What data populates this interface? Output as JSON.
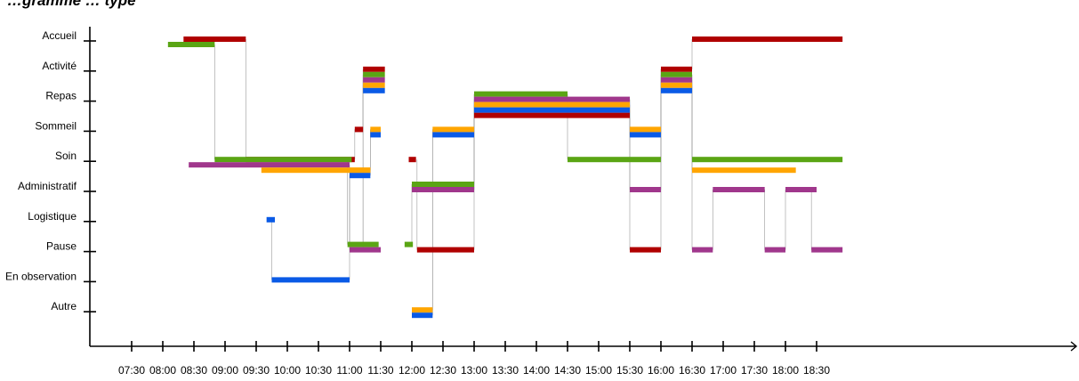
{
  "chart_data": {
    "type": "timeline",
    "title": "…gramme … type",
    "x_ticks": [
      "07:30",
      "08:00",
      "08:30",
      "09:00",
      "09:30",
      "10:00",
      "10:30",
      "11:00",
      "11:30",
      "12:00",
      "12:30",
      "13:00",
      "13:30",
      "14:00",
      "14:30",
      "15:00",
      "15:30",
      "16:00",
      "16:30",
      "17:00",
      "17:30",
      "18:00",
      "18:30"
    ],
    "x_range": [
      "07:10",
      "18:55"
    ],
    "categories": [
      "Accueil",
      "Activité",
      "Repas",
      "Sommeil",
      "Soin",
      "Administratif",
      "Logistique",
      "Pause",
      "En observation",
      "Autre"
    ],
    "grid": false,
    "series": [
      {
        "color": "#b00000",
        "segments": [
          {
            "start": "08:20",
            "end": "09:20",
            "category": "Accueil",
            "offset": 0
          },
          {
            "start": "09:20",
            "end": "11:05",
            "category": "Soin",
            "offset": 0
          },
          {
            "start": "11:05",
            "end": "11:13",
            "category": "Sommeil",
            "offset": 0
          },
          {
            "start": "11:13",
            "end": "11:34",
            "category": "Activité",
            "offset": 0
          },
          {
            "start": "11:57",
            "end": "12:04",
            "category": "Soin",
            "offset": 0
          },
          {
            "start": "12:05",
            "end": "13:00",
            "category": "Pause",
            "offset": 0
          },
          {
            "start": "13:00",
            "end": "15:30",
            "category": "Repas",
            "offset": 3
          },
          {
            "start": "15:30",
            "end": "16:00",
            "category": "Pause",
            "offset": 0
          },
          {
            "start": "16:00",
            "end": "16:30",
            "category": "Activité",
            "offset": 0
          },
          {
            "start": "16:30",
            "end": "18:55",
            "category": "Accueil",
            "offset": 0
          }
        ]
      },
      {
        "color": "#5aa514",
        "segments": [
          {
            "start": "08:05",
            "end": "08:50",
            "category": "Accueil",
            "offset": 1
          },
          {
            "start": "08:50",
            "end": "11:02",
            "category": "Soin",
            "offset": 0
          },
          {
            "start": "10:58",
            "end": "11:28",
            "category": "Pause",
            "offset": -1
          },
          {
            "start": "11:13",
            "end": "11:34",
            "category": "Activité",
            "offset": 1
          },
          {
            "start": "11:53",
            "end": "12:01",
            "category": "Pause",
            "offset": -1
          },
          {
            "start": "12:00",
            "end": "13:00",
            "category": "Administratif",
            "offset": -1
          },
          {
            "start": "13:00",
            "end": "14:30",
            "category": "Repas",
            "offset": -1
          },
          {
            "start": "14:30",
            "end": "16:00",
            "category": "Soin",
            "offset": 0
          },
          {
            "start": "16:00",
            "end": "16:30",
            "category": "Activité",
            "offset": 1
          },
          {
            "start": "16:30",
            "end": "18:55",
            "category": "Soin",
            "offset": 0
          }
        ]
      },
      {
        "color": "#a0378c",
        "segments": [
          {
            "start": "08:25",
            "end": "11:00",
            "category": "Soin",
            "offset": 1
          },
          {
            "start": "11:00",
            "end": "11:30",
            "category": "Pause",
            "offset": 0
          },
          {
            "start": "11:13",
            "end": "11:34",
            "category": "Activité",
            "offset": 2
          },
          {
            "start": "12:00",
            "end": "13:00",
            "category": "Administratif",
            "offset": 0
          },
          {
            "start": "13:00",
            "end": "15:30",
            "category": "Repas",
            "offset": 0
          },
          {
            "start": "15:30",
            "end": "16:00",
            "category": "Administratif",
            "offset": 0
          },
          {
            "start": "16:00",
            "end": "16:30",
            "category": "Activité",
            "offset": 2
          },
          {
            "start": "16:30",
            "end": "16:50",
            "category": "Pause",
            "offset": 0
          },
          {
            "start": "16:50",
            "end": "17:40",
            "category": "Administratif",
            "offset": 0
          },
          {
            "start": "17:40",
            "end": "18:00",
            "category": "Pause",
            "offset": 0
          },
          {
            "start": "18:00",
            "end": "18:30",
            "category": "Administratif",
            "offset": 0
          },
          {
            "start": "18:25",
            "end": "18:55",
            "category": "Pause",
            "offset": 0
          }
        ]
      },
      {
        "color": "#ffa500",
        "segments": [
          {
            "start": "09:35",
            "end": "11:20",
            "category": "Soin",
            "offset": 2
          },
          {
            "start": "11:00",
            "end": "11:20",
            "category": "Soin",
            "offset": 2
          },
          {
            "start": "11:20",
            "end": "11:30",
            "category": "Sommeil",
            "offset": 0
          },
          {
            "start": "11:13",
            "end": "11:34",
            "category": "Activité",
            "offset": 3
          },
          {
            "start": "12:00",
            "end": "12:20",
            "category": "Autre",
            "offset": 0
          },
          {
            "start": "12:20",
            "end": "13:00",
            "category": "Sommeil",
            "offset": 0
          },
          {
            "start": "13:00",
            "end": "15:30",
            "category": "Repas",
            "offset": 1
          },
          {
            "start": "15:30",
            "end": "16:00",
            "category": "Sommeil",
            "offset": 0
          },
          {
            "start": "16:00",
            "end": "16:30",
            "category": "Activité",
            "offset": 3
          },
          {
            "start": "16:30",
            "end": "18:10",
            "category": "Soin",
            "offset": 2
          }
        ]
      },
      {
        "color": "#0a5ae6",
        "segments": [
          {
            "start": "09:40",
            "end": "09:48",
            "category": "Logistique",
            "offset": 0
          },
          {
            "start": "09:45",
            "end": "11:00",
            "category": "En observation",
            "offset": 0
          },
          {
            "start": "11:00",
            "end": "11:20",
            "category": "Soin",
            "offset": 3
          },
          {
            "start": "11:20",
            "end": "11:30",
            "category": "Sommeil",
            "offset": 1
          },
          {
            "start": "11:13",
            "end": "11:34",
            "category": "Activité",
            "offset": 4
          },
          {
            "start": "12:00",
            "end": "12:20",
            "category": "Autre",
            "offset": 1
          },
          {
            "start": "12:20",
            "end": "13:00",
            "category": "Sommeil",
            "offset": 1
          },
          {
            "start": "13:00",
            "end": "15:30",
            "category": "Repas",
            "offset": 2
          },
          {
            "start": "15:30",
            "end": "16:00",
            "category": "Sommeil",
            "offset": 1
          },
          {
            "start": "16:00",
            "end": "16:30",
            "category": "Activité",
            "offset": 4
          }
        ]
      }
    ]
  }
}
